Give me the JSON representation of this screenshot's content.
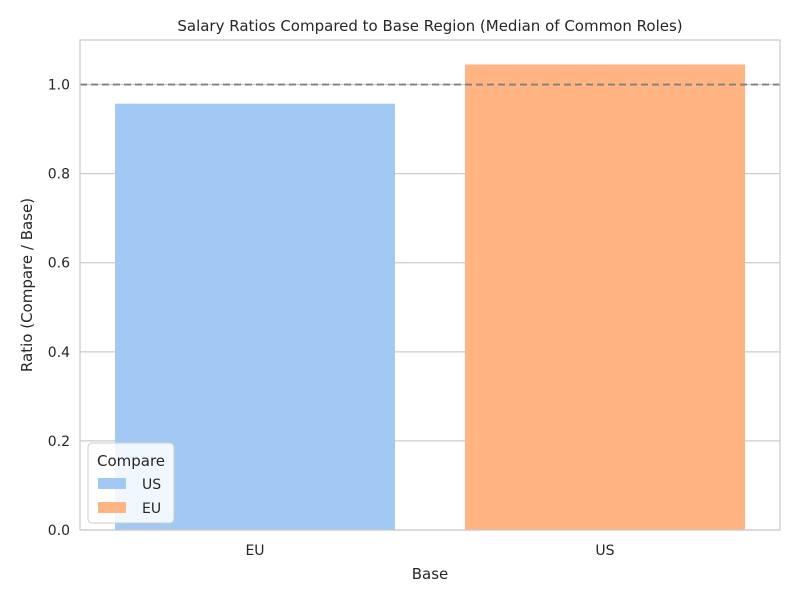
{
  "chart_data": {
    "type": "bar",
    "title": "Salary Ratios Compared to Base Region (Median of Common Roles)",
    "xlabel": "Base",
    "ylabel": "Ratio (Compare / Base)",
    "categories": [
      "EU",
      "US"
    ],
    "series": [
      {
        "name": "US",
        "color": "#a1c9f4",
        "values": [
          0.957,
          null
        ]
      },
      {
        "name": "EU",
        "color": "#ffb482",
        "values": [
          null,
          1.045
        ]
      }
    ],
    "yticks": [
      0.0,
      0.2,
      0.4,
      0.6,
      0.8,
      1.0
    ],
    "ylim": [
      0,
      1.1
    ],
    "reference_line": {
      "y": 1.0,
      "style": "dashed",
      "color": "#808080"
    },
    "grid": "horizontal",
    "legend": {
      "title": "Compare",
      "position": "lower-left",
      "entries": [
        "US",
        "EU"
      ]
    }
  }
}
